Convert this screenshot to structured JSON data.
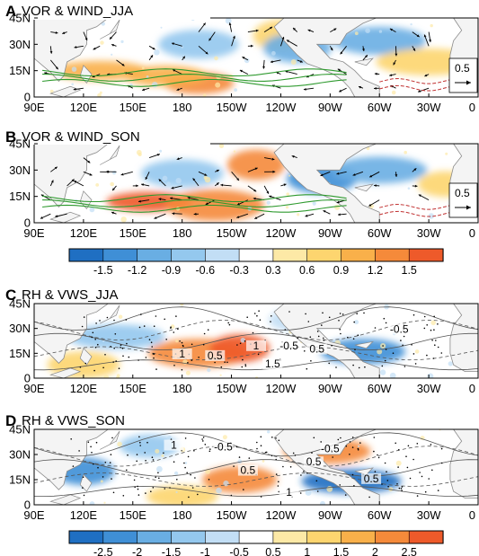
{
  "chart_data": [
    {
      "type": "heatmap",
      "panel_letter": "A",
      "title": "VOR & WIND_JJA",
      "x_ticks": [
        "90E",
        "120E",
        "150E",
        "180",
        "150W",
        "120W",
        "90W",
        "60W",
        "30W",
        "0"
      ],
      "y_ticks": [
        "0",
        "15N",
        "30N",
        "45N"
      ],
      "reference_vector": "0.5",
      "features": [
        {
          "lon": 190,
          "lat": 8,
          "value": 1.2
        },
        {
          "lon": 170,
          "lat": 12,
          "value": 0.9
        },
        {
          "lon": 130,
          "lat": 15,
          "value": 0.9
        },
        {
          "lon": 240,
          "lat": 35,
          "value": 0.6
        },
        {
          "lon": 250,
          "lat": 28,
          "value": -0.9
        },
        {
          "lon": 190,
          "lat": 30,
          "value": -0.6
        },
        {
          "lon": 300,
          "lat": 32,
          "value": -0.9
        },
        {
          "lon": 330,
          "lat": 20,
          "value": 0.6
        }
      ]
    },
    {
      "type": "heatmap",
      "panel_letter": "B",
      "title": "VOR & WIND_SON",
      "x_ticks": [
        "90E",
        "120E",
        "150E",
        "180",
        "150W",
        "120W",
        "90W",
        "60W",
        "30W",
        "0"
      ],
      "y_ticks": [
        "0",
        "15N",
        "30N",
        "45N"
      ],
      "reference_vector": "0.5",
      "features": [
        {
          "lon": 160,
          "lat": 12,
          "value": 1.5
        },
        {
          "lon": 200,
          "lat": 10,
          "value": 1.2
        },
        {
          "lon": 225,
          "lat": 33,
          "value": 1.2
        },
        {
          "lon": 265,
          "lat": 25,
          "value": -1.2
        },
        {
          "lon": 180,
          "lat": 28,
          "value": -0.6
        },
        {
          "lon": 300,
          "lat": 30,
          "value": -0.9
        },
        {
          "lon": 340,
          "lat": 22,
          "value": 0.6
        }
      ]
    },
    {
      "type": "heatmap",
      "panel_letter": "C",
      "title": "RH & VWS_JJA",
      "x_ticks": [
        "90E",
        "120E",
        "150E",
        "180",
        "150W",
        "120W",
        "90W",
        "60W",
        "30W",
        "0"
      ],
      "y_ticks": [
        "0",
        "15N",
        "30N",
        "45N"
      ],
      "contour_labels": [
        "1",
        "0.5",
        "1",
        "-0.5",
        "0.5",
        "1.5",
        "-0.5"
      ],
      "features": [
        {
          "lon": 190,
          "lat": 15,
          "value": 2.0
        },
        {
          "lon": 215,
          "lat": 18,
          "value": 2.5
        },
        {
          "lon": 120,
          "lat": 8,
          "value": 1.0
        },
        {
          "lon": 290,
          "lat": 16,
          "value": -2.0
        },
        {
          "lon": 140,
          "lat": 25,
          "value": -1.0
        },
        {
          "lon": 250,
          "lat": 35,
          "value": -0.5
        }
      ]
    },
    {
      "type": "heatmap",
      "panel_letter": "D",
      "title": "RH & VWS_SON",
      "x_ticks": [
        "90E",
        "120E",
        "150E",
        "180",
        "150W",
        "120W",
        "90W",
        "60W",
        "30W",
        "0"
      ],
      "y_ticks": [
        "0",
        "15N",
        "30N",
        "45N"
      ],
      "contour_labels": [
        "1",
        "-0.5",
        "0.5",
        "0.5",
        "1",
        "-0.5",
        "0.5"
      ],
      "features": [
        {
          "lon": 120,
          "lat": 20,
          "value": -2.0
        },
        {
          "lon": 215,
          "lat": 15,
          "value": 2.0
        },
        {
          "lon": 268,
          "lat": 32,
          "value": 2.0
        },
        {
          "lon": 283,
          "lat": 14,
          "value": -2.5
        },
        {
          "lon": 160,
          "lat": 35,
          "value": -1.0
        },
        {
          "lon": 180,
          "lat": 5,
          "value": 1.0
        }
      ]
    }
  ],
  "colorbars": [
    {
      "ticks": [
        "-1.5",
        "-1.2",
        "-0.9",
        "-0.6",
        "-0.3",
        "0.3",
        "0.6",
        "0.9",
        "1.2",
        "1.5"
      ]
    },
    {
      "ticks": [
        "-2.5",
        "-2",
        "-1.5",
        "-1",
        "-0.5",
        "0.5",
        "1",
        "1.5",
        "2",
        "2.5"
      ]
    }
  ],
  "colors": {
    "blues": [
      "#1f6fc2",
      "#3f8fd6",
      "#69aee3",
      "#94c8ee",
      "#c2def5"
    ],
    "reds": [
      "#fde9a6",
      "#fdd56f",
      "#f9b04a",
      "#f58a3a",
      "#ee5a2a"
    ],
    "contour_green": "#2f9a2f",
    "contour_red": "#c03030"
  }
}
